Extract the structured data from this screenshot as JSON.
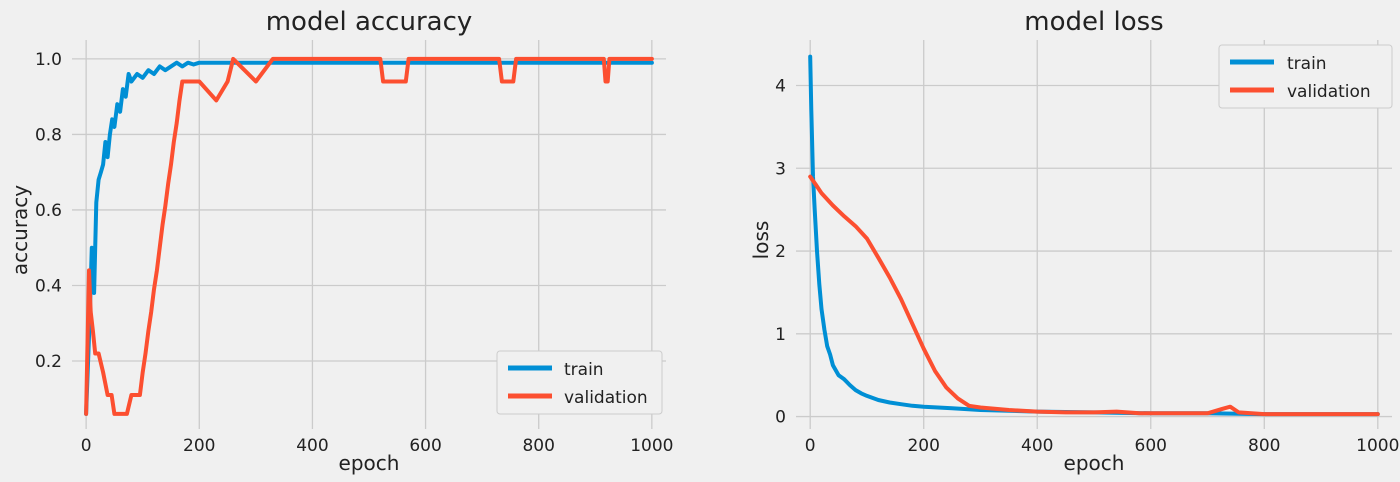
{
  "figure": {
    "background_color": "#f0f0f0",
    "grid_color": "#cbcbcb"
  },
  "series_styles": {
    "train": {
      "color": "#008fd5"
    },
    "validation": {
      "color": "#fc4f30"
    }
  },
  "chart_data": [
    {
      "type": "line",
      "title": "model accuracy",
      "xlabel": "epoch",
      "ylabel": "accuracy",
      "xlim": [
        -25,
        1025
      ],
      "ylim": [
        0.02,
        1.05
      ],
      "xticks": [
        0,
        200,
        400,
        600,
        800,
        1000
      ],
      "xtick_labels": [
        "0",
        "200",
        "400",
        "600",
        "800",
        "1000"
      ],
      "yticks": [
        0.2,
        0.4,
        0.6,
        0.8,
        1.0
      ],
      "ytick_labels": [
        "0.2",
        "0.4",
        "0.6",
        "0.8",
        "1.0"
      ],
      "grid": true,
      "legend": {
        "placement": "lower-right",
        "entries": [
          "train",
          "validation"
        ]
      },
      "series": [
        {
          "name": "train",
          "x": [
            0,
            6,
            10,
            14,
            18,
            22,
            26,
            30,
            34,
            38,
            42,
            46,
            50,
            55,
            60,
            65,
            70,
            75,
            80,
            90,
            100,
            110,
            120,
            130,
            140,
            150,
            160,
            170,
            180,
            190,
            200,
            250,
            300,
            350,
            400,
            450,
            500,
            550,
            600,
            650,
            700,
            750,
            800,
            850,
            900,
            950,
            1000
          ],
          "y": [
            0.06,
            0.3,
            0.5,
            0.38,
            0.62,
            0.68,
            0.7,
            0.72,
            0.78,
            0.74,
            0.8,
            0.84,
            0.82,
            0.88,
            0.86,
            0.92,
            0.9,
            0.96,
            0.94,
            0.96,
            0.95,
            0.97,
            0.96,
            0.98,
            0.97,
            0.98,
            0.99,
            0.98,
            0.99,
            0.985,
            0.99,
            0.99,
            0.99,
            0.99,
            0.99,
            0.99,
            0.99,
            0.99,
            0.99,
            0.99,
            0.99,
            0.99,
            0.99,
            0.99,
            0.99,
            0.99,
            0.99
          ]
        },
        {
          "name": "validation",
          "x": [
            0,
            2,
            5,
            8,
            12,
            16,
            22,
            30,
            38,
            45,
            50,
            58,
            65,
            72,
            80,
            88,
            95,
            100,
            105,
            110,
            115,
            120,
            125,
            130,
            135,
            140,
            145,
            150,
            155,
            160,
            165,
            170,
            180,
            200,
            230,
            250,
            260,
            300,
            330,
            400,
            450,
            520,
            525,
            565,
            570,
            730,
            735,
            755,
            760,
            915,
            918,
            922,
            925,
            1000
          ],
          "y": [
            0.06,
            0.22,
            0.44,
            0.33,
            0.28,
            0.22,
            0.22,
            0.17,
            0.11,
            0.11,
            0.06,
            0.06,
            0.06,
            0.06,
            0.11,
            0.11,
            0.11,
            0.17,
            0.22,
            0.28,
            0.33,
            0.39,
            0.44,
            0.5,
            0.56,
            0.61,
            0.67,
            0.72,
            0.78,
            0.83,
            0.89,
            0.94,
            0.94,
            0.94,
            0.89,
            0.94,
            1.0,
            0.94,
            1.0,
            1.0,
            1.0,
            1.0,
            0.94,
            0.94,
            1.0,
            1.0,
            0.94,
            0.94,
            1.0,
            1.0,
            0.94,
            0.94,
            1.0,
            1.0
          ]
        }
      ]
    },
    {
      "type": "line",
      "title": "model loss",
      "xlabel": "epoch",
      "ylabel": "loss",
      "xlim": [
        -25,
        1025
      ],
      "ylim": [
        -0.15,
        4.55
      ],
      "xticks": [
        0,
        200,
        400,
        600,
        800,
        1000
      ],
      "xtick_labels": [
        "0",
        "200",
        "400",
        "600",
        "800",
        "1000"
      ],
      "yticks": [
        0,
        1,
        2,
        3,
        4
      ],
      "ytick_labels": [
        "0",
        "1",
        "2",
        "3",
        "4"
      ],
      "grid": true,
      "legend": {
        "placement": "upper-right",
        "entries": [
          "train",
          "validation"
        ]
      },
      "series": [
        {
          "name": "train",
          "x": [
            0,
            2,
            5,
            8,
            12,
            16,
            20,
            25,
            30,
            35,
            40,
            50,
            60,
            70,
            80,
            90,
            100,
            120,
            140,
            160,
            180,
            200,
            250,
            300,
            350,
            400,
            500,
            600,
            700,
            800,
            900,
            1000
          ],
          "y": [
            4.35,
            3.7,
            2.9,
            2.5,
            2.0,
            1.6,
            1.3,
            1.05,
            0.85,
            0.75,
            0.62,
            0.5,
            0.45,
            0.38,
            0.32,
            0.28,
            0.25,
            0.2,
            0.17,
            0.15,
            0.13,
            0.12,
            0.1,
            0.08,
            0.07,
            0.06,
            0.05,
            0.04,
            0.04,
            0.03,
            0.03,
            0.03
          ]
        },
        {
          "name": "validation",
          "x": [
            0,
            10,
            20,
            40,
            60,
            80,
            100,
            120,
            140,
            160,
            180,
            200,
            220,
            240,
            260,
            280,
            300,
            350,
            400,
            450,
            500,
            540,
            580,
            650,
            700,
            725,
            740,
            755,
            800,
            900,
            1000
          ],
          "y": [
            2.9,
            2.8,
            2.7,
            2.55,
            2.42,
            2.3,
            2.15,
            1.92,
            1.68,
            1.42,
            1.12,
            0.82,
            0.55,
            0.35,
            0.22,
            0.13,
            0.11,
            0.08,
            0.06,
            0.05,
            0.05,
            0.06,
            0.04,
            0.04,
            0.04,
            0.09,
            0.12,
            0.05,
            0.03,
            0.03,
            0.03
          ]
        }
      ]
    }
  ]
}
